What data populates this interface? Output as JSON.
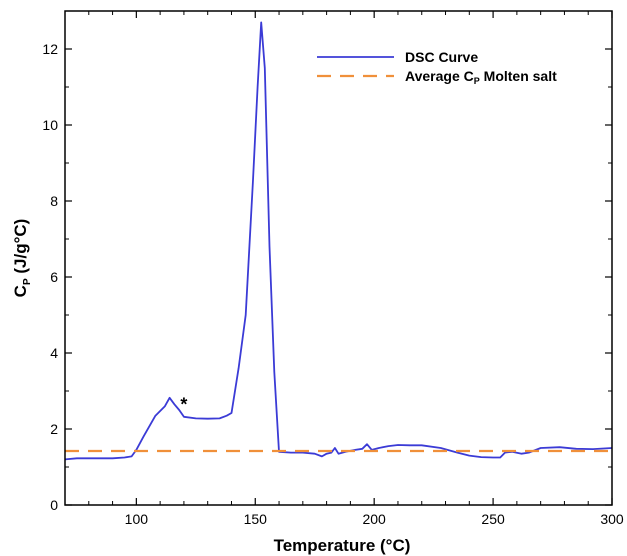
{
  "chart_data": {
    "type": "line",
    "xlabel": "Temperature (°C)",
    "ylabel_main": "C",
    "ylabel_sub": "P",
    "ylabel_rest": " (J/g°C)",
    "xlim": [
      70,
      300
    ],
    "ylim": [
      0,
      13
    ],
    "xticks": [
      100,
      150,
      200,
      250,
      300
    ],
    "xtick_labels": [
      "100",
      "150",
      "200",
      "250",
      "300"
    ],
    "yticks": [
      0,
      2,
      4,
      6,
      8,
      10,
      12
    ],
    "ytick_labels": [
      "0",
      "2",
      "4",
      "6",
      "8",
      "10",
      "12"
    ],
    "grid": false,
    "legend_position": "top-right",
    "annotation": {
      "text": "*",
      "x": 120,
      "y": 2.7
    },
    "series": [
      {
        "name": "DSC Curve",
        "color": "#3b3bd6",
        "style": "solid",
        "x": [
          70,
          75,
          80,
          90,
          95,
          98,
          100,
          103,
          108,
          112,
          114,
          116,
          118,
          120,
          125,
          130,
          135,
          138,
          140,
          143,
          146,
          149,
          151,
          152.5,
          154,
          156,
          158,
          160,
          165,
          170,
          175,
          178,
          180,
          182,
          183.5,
          185,
          188,
          192,
          195,
          197,
          199,
          202,
          206,
          210,
          215,
          220,
          228,
          235,
          240,
          245,
          250,
          253,
          255,
          258,
          262,
          265,
          270,
          278,
          285,
          292,
          300
        ],
        "values": [
          1.2,
          1.23,
          1.23,
          1.23,
          1.25,
          1.28,
          1.45,
          1.8,
          2.35,
          2.6,
          2.82,
          2.65,
          2.5,
          2.32,
          2.28,
          2.27,
          2.28,
          2.35,
          2.42,
          3.6,
          5.0,
          8.5,
          11.0,
          12.7,
          11.5,
          6.8,
          3.5,
          1.4,
          1.38,
          1.38,
          1.35,
          1.28,
          1.35,
          1.38,
          1.5,
          1.35,
          1.4,
          1.45,
          1.48,
          1.6,
          1.45,
          1.5,
          1.55,
          1.58,
          1.57,
          1.57,
          1.5,
          1.38,
          1.3,
          1.26,
          1.25,
          1.25,
          1.38,
          1.4,
          1.35,
          1.38,
          1.5,
          1.52,
          1.48,
          1.47,
          1.5
        ]
      },
      {
        "name": "Average C",
        "name_sub": "P",
        "name_rest": " Molten salt",
        "color": "#f0903a",
        "style": "dashed",
        "x": [
          70,
          300
        ],
        "values": [
          1.42,
          1.42
        ]
      }
    ]
  }
}
